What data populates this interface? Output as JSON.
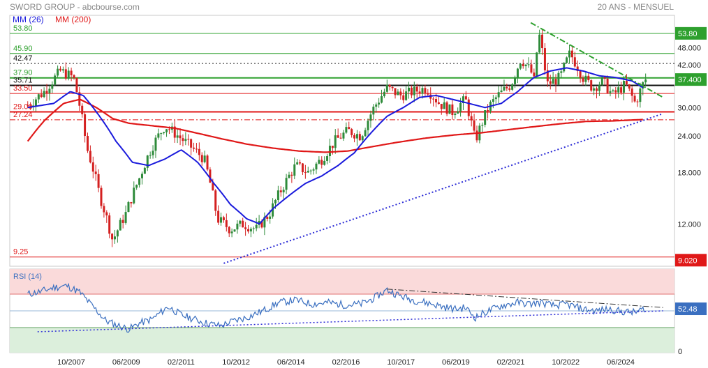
{
  "header": {
    "title": "SWORD GROUP - abcbourse.com",
    "period": "20 ANS - MENSUEL"
  },
  "legend": {
    "ma26": {
      "label": "MM (26)",
      "color": "#1a1adc"
    },
    "ma200": {
      "label": "MM (200)",
      "color": "#e01818"
    }
  },
  "colors": {
    "up": "#2e8b3a",
    "down": "#d42020",
    "green_line": "#2ea02e",
    "red_line": "#e01818",
    "support": "#2b2bd6",
    "resistance": "#2ea02e",
    "rsi": "#3a6fc0",
    "ob_zone": "#fadada",
    "os_zone": "#dcefdc"
  },
  "chart_data": [
    {
      "type": "candlestick",
      "scale": "log",
      "x_ticks": [
        "10/2007",
        "06/2009",
        "02/2011",
        "10/2012",
        "06/2014",
        "02/2016",
        "10/2017",
        "06/2019",
        "02/2021",
        "10/2022",
        "06/2024"
      ],
      "y_ticks": [
        "48.000",
        "42.000",
        "37.400",
        "30.000",
        "24.000",
        "18.000",
        "12.000"
      ],
      "ylim": [
        8.6,
        62
      ],
      "levels": [
        {
          "label": "53.80",
          "value": 53.8,
          "style": "solid",
          "color": "green"
        },
        {
          "label": "45.90",
          "value": 45.9,
          "style": "solid",
          "color": "green"
        },
        {
          "label": "42.47",
          "value": 42.47,
          "style": "dotted",
          "color": "black"
        },
        {
          "label": "37.90",
          "value": 37.9,
          "style": "solid-thick",
          "color": "green"
        },
        {
          "label": "35.71",
          "value": 35.71,
          "style": "solid-thick",
          "color": "black"
        },
        {
          "label": "33.50",
          "value": 33.5,
          "style": "solid",
          "color": "red"
        },
        {
          "label": "29.00",
          "value": 29.0,
          "style": "solid-thick",
          "color": "red"
        },
        {
          "label": "27.24",
          "value": 27.24,
          "style": "dashdot",
          "color": "red"
        },
        {
          "label": "9.25",
          "value": 9.25,
          "style": "solid",
          "color": "red"
        }
      ],
      "price_badges": [
        {
          "label": "53.80",
          "value": 53.8,
          "color": "green"
        },
        {
          "label": "37.400",
          "value": 37.4,
          "color": "green"
        },
        {
          "label": "9.020",
          "value": 9.02,
          "color": "red"
        }
      ],
      "close_anchors": [
        [
          2006.5,
          30.5
        ],
        [
          2007.0,
          34
        ],
        [
          2007.5,
          40
        ],
        [
          2007.9,
          38
        ],
        [
          2008.3,
          22
        ],
        [
          2008.7,
          15
        ],
        [
          2009.1,
          10.5
        ],
        [
          2009.5,
          13
        ],
        [
          2009.9,
          17
        ],
        [
          2010.3,
          22
        ],
        [
          2010.7,
          26
        ],
        [
          2011.1,
          24
        ],
        [
          2011.5,
          22
        ],
        [
          2011.9,
          20
        ],
        [
          2012.3,
          12.5
        ],
        [
          2012.7,
          11.5
        ],
        [
          2013.1,
          12
        ],
        [
          2013.5,
          11.5
        ],
        [
          2013.9,
          13
        ],
        [
          2014.3,
          16
        ],
        [
          2014.7,
          19
        ],
        [
          2015.1,
          18
        ],
        [
          2015.5,
          20
        ],
        [
          2015.9,
          23
        ],
        [
          2016.3,
          25
        ],
        [
          2016.7,
          24
        ],
        [
          2017.1,
          30
        ],
        [
          2017.5,
          35
        ],
        [
          2017.9,
          33
        ],
        [
          2018.3,
          34
        ],
        [
          2018.7,
          35
        ],
        [
          2019.1,
          31
        ],
        [
          2019.5,
          29
        ],
        [
          2019.9,
          32
        ],
        [
          2020.2,
          23
        ],
        [
          2020.6,
          30
        ],
        [
          2020.9,
          33
        ],
        [
          2021.3,
          36
        ],
        [
          2021.6,
          44
        ],
        [
          2021.9,
          40
        ],
        [
          2022.0,
          37
        ],
        [
          2022.15,
          53.8
        ],
        [
          2022.4,
          36
        ],
        [
          2022.8,
          38
        ],
        [
          2023.1,
          46
        ],
        [
          2023.5,
          38
        ],
        [
          2023.8,
          35
        ],
        [
          2024.1,
          37
        ],
        [
          2024.4,
          33
        ],
        [
          2024.8,
          36
        ],
        [
          2025.1,
          31
        ],
        [
          2025.4,
          37.4
        ]
      ],
      "ma26_anchors": [
        [
          2006.5,
          30
        ],
        [
          2007.3,
          31
        ],
        [
          2007.8,
          34
        ],
        [
          2008.2,
          33
        ],
        [
          2008.7,
          28
        ],
        [
          2009.2,
          23
        ],
        [
          2009.7,
          19.5
        ],
        [
          2010.2,
          19
        ],
        [
          2010.7,
          20
        ],
        [
          2011.2,
          21.5
        ],
        [
          2011.7,
          19.5
        ],
        [
          2012.2,
          16.5
        ],
        [
          2012.7,
          14
        ],
        [
          2013.2,
          12.5
        ],
        [
          2013.6,
          12
        ],
        [
          2014.0,
          13.5
        ],
        [
          2014.5,
          15
        ],
        [
          2015.0,
          16.5
        ],
        [
          2015.5,
          17.5
        ],
        [
          2016.0,
          19
        ],
        [
          2016.5,
          21
        ],
        [
          2017.0,
          24.5
        ],
        [
          2017.5,
          28
        ],
        [
          2018.0,
          30
        ],
        [
          2018.5,
          32.5
        ],
        [
          2019.0,
          33
        ],
        [
          2019.5,
          32
        ],
        [
          2020.0,
          31
        ],
        [
          2020.5,
          30
        ],
        [
          2021.0,
          31
        ],
        [
          2021.5,
          34
        ],
        [
          2022.0,
          38
        ],
        [
          2022.5,
          40
        ],
        [
          2023.0,
          41
        ],
        [
          2023.5,
          40
        ],
        [
          2024.0,
          38.5
        ],
        [
          2024.5,
          38
        ],
        [
          2025.0,
          37
        ],
        [
          2025.35,
          35
        ]
      ],
      "ma200_anchors": [
        [
          2006.5,
          23
        ],
        [
          2007.0,
          27
        ],
        [
          2007.6,
          31
        ],
        [
          2008.1,
          32
        ],
        [
          2008.6,
          30
        ],
        [
          2009.1,
          27.5
        ],
        [
          2009.6,
          26.5
        ],
        [
          2010.3,
          26
        ],
        [
          2011.0,
          25.5
        ],
        [
          2011.7,
          24.5
        ],
        [
          2012.4,
          23.5
        ],
        [
          2013.2,
          22.5
        ],
        [
          2014.0,
          21.8
        ],
        [
          2014.8,
          21.3
        ],
        [
          2015.6,
          21.1
        ],
        [
          2016.3,
          21.3
        ],
        [
          2017.0,
          22
        ],
        [
          2017.8,
          22.8
        ],
        [
          2018.7,
          23.6
        ],
        [
          2019.6,
          24.2
        ],
        [
          2020.4,
          24.6
        ],
        [
          2021.2,
          25.2
        ],
        [
          2022.0,
          25.8
        ],
        [
          2022.8,
          26.4
        ],
        [
          2023.6,
          26.9
        ],
        [
          2024.4,
          27
        ],
        [
          2025.35,
          27.3
        ]
      ],
      "support_line": [
        [
          2012.5,
          8.8
        ],
        [
          2025.95,
          28.6
        ]
      ],
      "resistance_line": [
        [
          2021.9,
          58.5
        ],
        [
          2025.95,
          32.5
        ]
      ]
    },
    {
      "type": "line",
      "series": [
        {
          "name": "RSI (14)"
        }
      ],
      "y_ticks": [
        "0"
      ],
      "ylim": [
        0,
        100
      ],
      "badge": "52.48",
      "zones": {
        "overbought": [
          70,
          100
        ],
        "oversold": [
          0,
          30
        ]
      },
      "rsi_anchors": [
        [
          2006.5,
          70
        ],
        [
          2006.9,
          73
        ],
        [
          2007.3,
          78
        ],
        [
          2007.7,
          80
        ],
        [
          2008.1,
          72
        ],
        [
          2008.5,
          55
        ],
        [
          2008.9,
          38
        ],
        [
          2009.3,
          32
        ],
        [
          2009.6,
          28
        ],
        [
          2009.9,
          35
        ],
        [
          2010.3,
          40
        ],
        [
          2010.8,
          55
        ],
        [
          2011.2,
          45
        ],
        [
          2011.6,
          40
        ],
        [
          2012.0,
          35
        ],
        [
          2012.4,
          32
        ],
        [
          2012.8,
          38
        ],
        [
          2013.2,
          42
        ],
        [
          2013.7,
          50
        ],
        [
          2014.2,
          60
        ],
        [
          2014.7,
          63
        ],
        [
          2015.2,
          58
        ],
        [
          2015.7,
          60
        ],
        [
          2016.2,
          57
        ],
        [
          2016.7,
          58
        ],
        [
          2017.1,
          65
        ],
        [
          2017.5,
          75
        ],
        [
          2017.9,
          68
        ],
        [
          2018.3,
          63
        ],
        [
          2018.8,
          59
        ],
        [
          2019.2,
          55
        ],
        [
          2019.6,
          52
        ],
        [
          2019.9,
          54
        ],
        [
          2020.2,
          42
        ],
        [
          2020.6,
          50
        ],
        [
          2021.0,
          56
        ],
        [
          2021.5,
          60
        ],
        [
          2021.9,
          58
        ],
        [
          2022.2,
          60
        ],
        [
          2022.6,
          56
        ],
        [
          2023.0,
          58
        ],
        [
          2023.5,
          52
        ],
        [
          2023.9,
          50
        ],
        [
          2024.3,
          52
        ],
        [
          2024.7,
          49
        ],
        [
          2025.1,
          48
        ],
        [
          2025.4,
          53
        ]
      ],
      "rsi_support": [
        [
          2006.8,
          25
        ],
        [
          2025.95,
          50
        ]
      ],
      "rsi_resistance": [
        [
          2017.5,
          76
        ],
        [
          2025.95,
          54
        ]
      ]
    }
  ]
}
